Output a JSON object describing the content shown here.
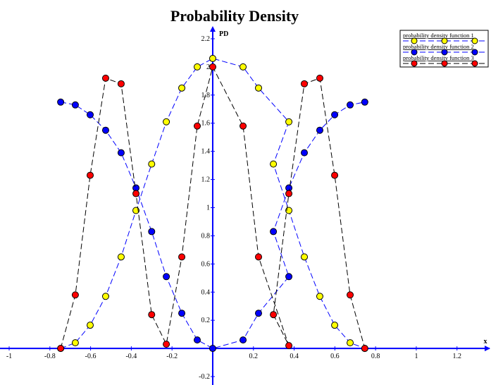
{
  "chart_data": {
    "type": "line",
    "title": "Probability Density",
    "x_label": "x",
    "y_label": "PD",
    "xlim": [
      -1.045,
      1.367
    ],
    "ylim": [
      -0.26,
      2.28
    ],
    "xticks": [
      -1,
      -0.8,
      -0.6,
      -0.4,
      -0.2,
      0.2,
      0.4,
      0.6,
      0.8,
      1,
      1.2
    ],
    "yticks": [
      -0.2,
      0.2,
      0.4,
      0.6,
      0.8,
      1,
      1.2,
      1.4,
      1.6,
      1.8,
      2,
      2.2
    ],
    "legend": "top-right",
    "series": [
      {
        "name": "probability density function 1",
        "color": "#ffff00",
        "line_color": "#0000ff",
        "x": [
          -0.747,
          -0.675,
          -0.602,
          -0.526,
          -0.45,
          -0.377,
          -0.3,
          -0.228,
          -0.152,
          -0.076,
          0,
          0.149,
          0.225,
          0.374,
          0.298,
          0.374,
          0.45,
          0.526,
          0.599,
          0.675,
          0.747
        ],
        "values": [
          0,
          0.04,
          0.165,
          0.37,
          0.65,
          0.98,
          1.31,
          1.61,
          1.85,
          2.0,
          2.06,
          2.0,
          1.85,
          1.61,
          1.31,
          0.98,
          0.65,
          0.37,
          0.165,
          0.04,
          0
        ]
      },
      {
        "name": "probability density function 2",
        "color": "#0000ff",
        "line_color": "#0000ff",
        "x": [
          -0.747,
          -0.675,
          -0.602,
          -0.526,
          -0.45,
          -0.377,
          -0.3,
          -0.228,
          -0.152,
          -0.076,
          0,
          0.149,
          0.225,
          0.374,
          0.298,
          0.374,
          0.45,
          0.526,
          0.599,
          0.675,
          0.747
        ],
        "values": [
          1.75,
          1.73,
          1.66,
          1.55,
          1.39,
          1.14,
          0.83,
          0.51,
          0.25,
          0.06,
          0,
          0.06,
          0.25,
          0.51,
          0.83,
          1.14,
          1.39,
          1.55,
          1.66,
          1.73,
          1.75
        ]
      },
      {
        "name": "probability density function 3",
        "color": "#ff0000",
        "line_color": "#000000",
        "x": [
          -0.747,
          -0.675,
          -0.602,
          -0.526,
          -0.45,
          -0.377,
          -0.3,
          -0.228,
          -0.152,
          -0.076,
          0,
          0.149,
          0.225,
          0.374,
          0.298,
          0.374,
          0.45,
          0.526,
          0.599,
          0.675,
          0.747
        ],
        "values": [
          0,
          0.38,
          1.23,
          1.92,
          1.88,
          1.1,
          0.24,
          0.03,
          0.65,
          1.58,
          2.0,
          1.58,
          0.65,
          0.02,
          0.24,
          1.1,
          1.88,
          1.92,
          1.23,
          0.38,
          0
        ]
      }
    ]
  }
}
